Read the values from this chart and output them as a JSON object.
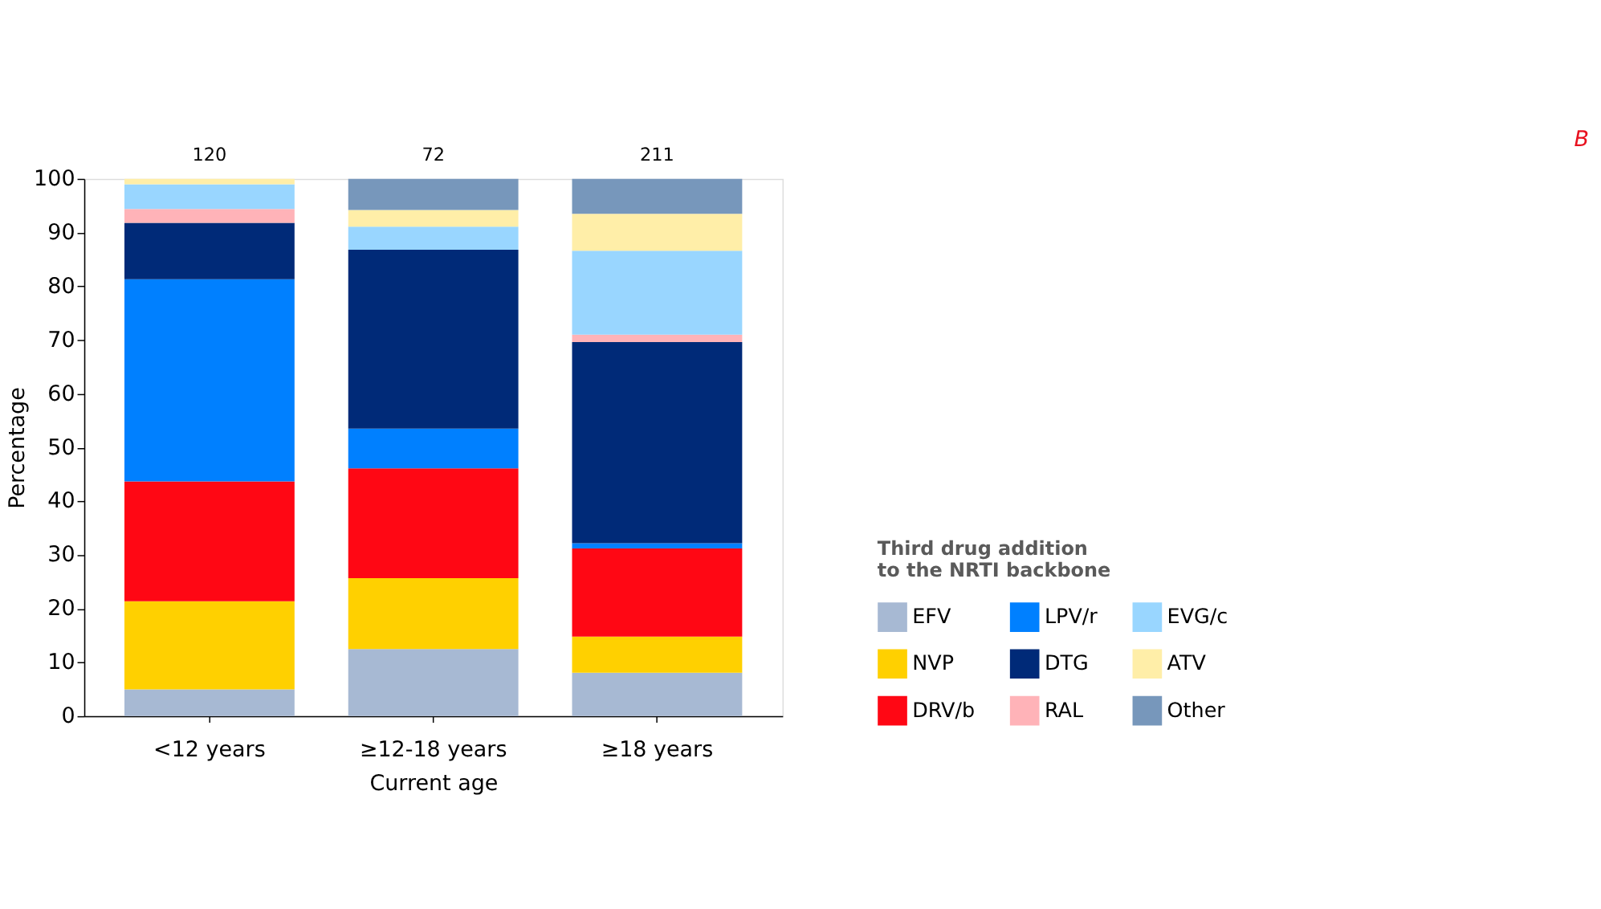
{
  "chart_data": {
    "type": "bar",
    "title": "B",
    "xlabel": "Current age",
    "ylabel": "Percentage",
    "legend_title": "Third drug addition\nto the NRTI backbone",
    "categories": [
      "<12 years",
      "≥12-18 years",
      "≥18 years"
    ],
    "stacked": true,
    "ylim": [
      0,
      100
    ],
    "yticks": [
      0,
      10,
      20,
      30,
      40,
      50,
      60,
      70,
      80,
      90,
      100
    ],
    "grid": false,
    "legend": "bottom right",
    "series": [
      {
        "name": "EFV",
        "color": "#a7b9d3",
        "values": [
          5.0,
          12.5,
          8.1
        ]
      },
      {
        "name": "NVP",
        "color": "#ffd000",
        "values": [
          16.4,
          13.2,
          6.7
        ]
      },
      {
        "name": "DRV/b",
        "color": "#ff0714",
        "values": [
          22.3,
          20.4,
          16.4
        ]
      },
      {
        "name": "LPV/r",
        "color": "#0080ff",
        "values": [
          37.6,
          7.4,
          1.0
        ]
      },
      {
        "name": "DTG",
        "color": "#002a78",
        "values": [
          10.5,
          33.3,
          37.4
        ]
      },
      {
        "name": "RAL",
        "color": "#ffb3b8",
        "values": [
          2.6,
          0,
          1.4
        ]
      },
      {
        "name": "EVG/c",
        "color": "#99d6ff",
        "values": [
          4.6,
          4.3,
          15.6
        ]
      },
      {
        "name": "ATV",
        "color": "#ffeea8",
        "values": [
          1.0,
          3.1,
          6.9
        ]
      },
      {
        "name": "Other",
        "color": "#7797bb",
        "values": [
          0,
          5.8,
          6.5
        ]
      }
    ],
    "annotations": [
      {
        "text": "120",
        "x": "<12 years",
        "y": 100
      },
      {
        "text": "72",
        "x": "≥12-18 years",
        "y": 100
      },
      {
        "text": "211",
        "x": "≥18 years",
        "y": 100
      }
    ]
  }
}
